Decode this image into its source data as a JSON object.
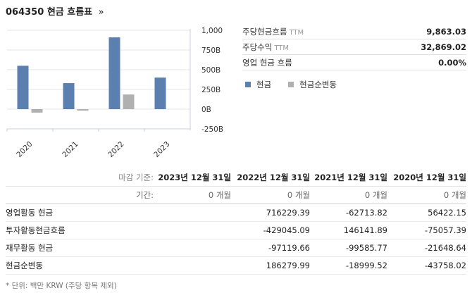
{
  "header": {
    "code": "064350",
    "title": "현금 흐름표",
    "chevron": "»"
  },
  "stats": [
    {
      "label": "주당현금흐름",
      "tag": "TTM",
      "value": "9,863.03"
    },
    {
      "label": "주당수익",
      "tag": "TTM",
      "value": "32,869.02"
    },
    {
      "label": "영업 현금 흐름",
      "tag": "",
      "value": "0.00%"
    }
  ],
  "legend": [
    {
      "label": "현금",
      "color": "#5B7FAF"
    },
    {
      "label": "현금순변동",
      "color": "#B0B0B0"
    }
  ],
  "chart_data": {
    "type": "bar",
    "categories": [
      "2020",
      "2021",
      "2022",
      "2023"
    ],
    "series": [
      {
        "name": "현금",
        "values": [
          550,
          330,
          910,
          400
        ],
        "color": "#5B7FAF"
      },
      {
        "name": "현금순변동",
        "values": [
          -44,
          -19,
          186,
          null
        ],
        "color": "#B0B0B0"
      }
    ],
    "yticks": [
      "1,000",
      "750B",
      "500B",
      "250B",
      "0B",
      "-250B"
    ],
    "ytick_values": [
      1000,
      750,
      500,
      250,
      0,
      -250
    ],
    "ylim": [
      -250,
      1000
    ]
  },
  "table": {
    "header_label": "마감 기준:",
    "period_label": "기간:",
    "columns": [
      "2023년 12월 31일",
      "2022년 12월 31일",
      "2021년 12월 31일",
      "2020년 12월 31일"
    ],
    "periods": [
      "0 개월",
      "0 개월",
      "0 개월",
      "0 개월"
    ],
    "rows": [
      {
        "label": "영업활동 현금",
        "values": [
          "",
          "716229.39",
          "-62713.82",
          "56422.15"
        ]
      },
      {
        "label": "투자활동현금흐름",
        "values": [
          "",
          "-429045.09",
          "146141.89",
          "-75057.39"
        ]
      },
      {
        "label": "재무활동 현금",
        "values": [
          "",
          "-97119.66",
          "-99585.77",
          "-21648.64"
        ]
      },
      {
        "label": "현금순변동",
        "values": [
          "",
          "186279.99",
          "-18999.52",
          "-43758.02"
        ]
      }
    ]
  },
  "footnote": "* 단위: 백만 KRW (주당 항목 제외)"
}
